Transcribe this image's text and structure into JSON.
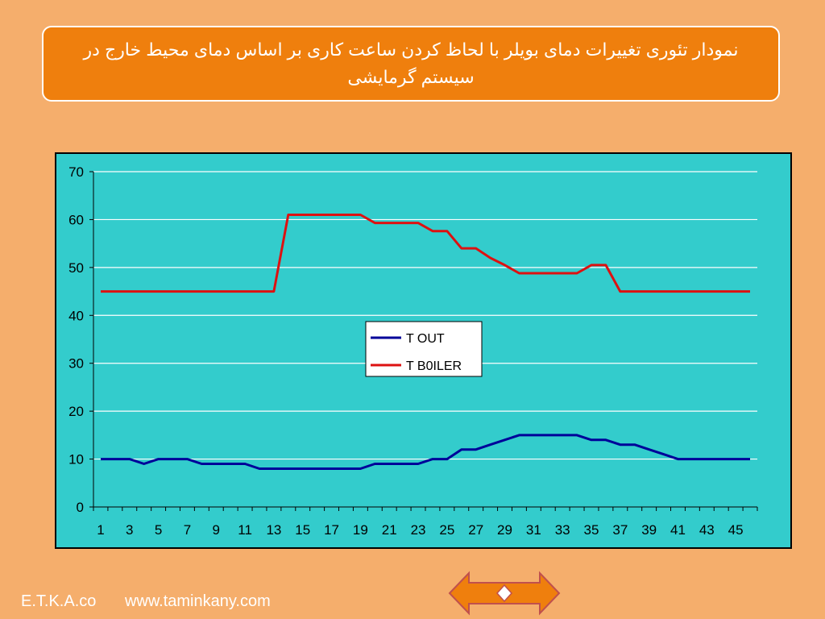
{
  "title": "نمودار  تئوری تغییرات دمای بویلر  با لحاظ کردن ساعت کاری بر اساس دمای محیط خارج در سیستم گرمایشی",
  "footer": {
    "company": "E.T.K.A.co",
    "website": "www.taminkany.com"
  },
  "colors": {
    "background": "#f5ae6c",
    "title_box": "#ef7f0d",
    "plot_area": "#33cccc",
    "t_out": "#000099",
    "t_boiler": "#dd1111"
  },
  "navigation": {
    "icon": "double-arrow-navigation-icon"
  },
  "chart_data": {
    "type": "line",
    "title": "",
    "xlabel": "",
    "ylabel": "",
    "x": [
      1,
      2,
      3,
      4,
      5,
      6,
      7,
      8,
      9,
      10,
      11,
      12,
      13,
      14,
      15,
      16,
      17,
      18,
      19,
      20,
      21,
      22,
      23,
      24,
      25,
      26,
      27,
      28,
      29,
      30,
      31,
      32,
      33,
      34,
      35,
      36,
      37,
      38,
      39,
      40,
      41,
      42,
      43,
      44,
      45,
      46
    ],
    "x_tick_labels": [
      "1",
      "3",
      "5",
      "7",
      "9",
      "11",
      "13",
      "15",
      "17",
      "19",
      "21",
      "23",
      "25",
      "27",
      "29",
      "31",
      "33",
      "35",
      "37",
      "39",
      "41",
      "43",
      "45"
    ],
    "ylim": [
      0,
      70
    ],
    "y_ticks": [
      0,
      10,
      20,
      30,
      40,
      50,
      60,
      70
    ],
    "grid": "horizontal",
    "legend_position": "center",
    "series": [
      {
        "name": "T OUT",
        "color": "#000099",
        "values": [
          10,
          10,
          10,
          9,
          10,
          10,
          10,
          9,
          9,
          9,
          9,
          8,
          8,
          8,
          8,
          8,
          8,
          8,
          8,
          9,
          9,
          9,
          9,
          10,
          10,
          12,
          12,
          13,
          14,
          15,
          15,
          15,
          15,
          15,
          14,
          14,
          13,
          13,
          12,
          11,
          10,
          10,
          10,
          10,
          10,
          10
        ]
      },
      {
        "name": "T B0ILER",
        "color": "#dd1111",
        "values": [
          45,
          45,
          45,
          45,
          45,
          45,
          45,
          45,
          45,
          45,
          45,
          45,
          45,
          61,
          61,
          61,
          61,
          61,
          61,
          59.3,
          59.3,
          59.3,
          59.3,
          57.6,
          57.6,
          54,
          54,
          52,
          50.5,
          48.8,
          48.8,
          48.8,
          48.8,
          48.8,
          50.5,
          50.5,
          45,
          45,
          45,
          45,
          45,
          45,
          45,
          45,
          45,
          45
        ]
      }
    ]
  }
}
